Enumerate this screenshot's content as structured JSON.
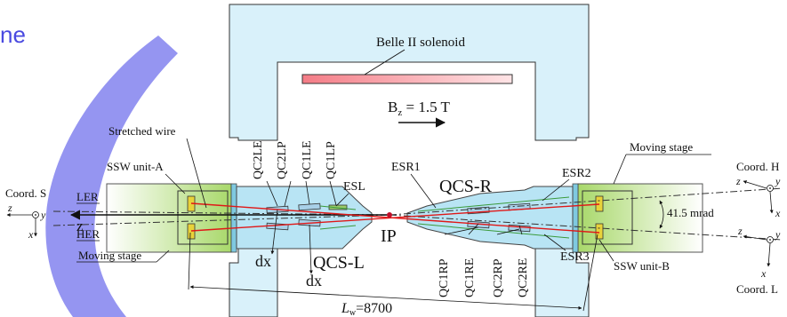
{
  "slide": {
    "title_fragment": "ne",
    "accent": "#4a4ae0"
  },
  "diagram": {
    "solenoid_label": "Belle II solenoid",
    "bz_label_prefix": "B",
    "bz_label_sub": "z",
    "bz_label_value": " = 1.5 T",
    "magnets_left": [
      "QC2LE",
      "QC2LP",
      "QC1LE",
      "QC1LP"
    ],
    "magnets_right": [
      "QC1RP",
      "QC1RE",
      "QC2RP",
      "QC2RE"
    ],
    "esl": "ESL",
    "esr1": "ESR1",
    "esr2": "ESR2",
    "esr3": "ESR3",
    "qcs_left": "QCS-L",
    "qcs_right": "QCS-R",
    "ip": "IP",
    "dx_left": "dx",
    "dx_right": "dx",
    "stretched_wire": "Stretched wire",
    "ssw_a": "SSW unit-A",
    "ssw_b": "SSW unit-B",
    "moving_stage_left": "Moving stage",
    "moving_stage_right": "Moving stage",
    "ler": "LER",
    "her": "HER",
    "coord_s": "Coord. S",
    "coord_h": "Coord. H",
    "coord_l": "Coord. L",
    "axis_z": "z",
    "axis_y": "y",
    "axis_x": "x",
    "z_beam": "z",
    "angle": "41.5 mrad",
    "lw_prefix": "L",
    "lw_sub": "w",
    "lw_value": "=8700"
  }
}
